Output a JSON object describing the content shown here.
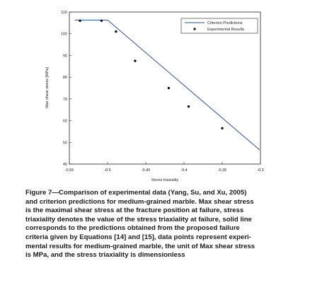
{
  "chart_data": {
    "type": "line",
    "title": "",
    "xlabel": "Stress triaxiality",
    "ylabel": "Max shear stress [MPa]",
    "xlim": [
      -0.55,
      -0.3
    ],
    "ylim": [
      40,
      110
    ],
    "x_ticks": [
      -0.55,
      -0.5,
      -0.45,
      -0.4,
      -0.35,
      -0.3
    ],
    "x_tick_labels": [
      "-0.55",
      "-0.5",
      "-0.45",
      "-0.4",
      "-0.35",
      "-0.3"
    ],
    "y_ticks": [
      40,
      50,
      60,
      70,
      80,
      90,
      100,
      110
    ],
    "y_tick_labels": [
      "40",
      "50",
      "60",
      "70",
      "80",
      "90",
      "100",
      "110"
    ],
    "grid": false,
    "legend_position": "top-right",
    "series": [
      {
        "name": "Criterion Predictions",
        "kind": "line",
        "color": "#2f4f8f",
        "x": [
          -0.543,
          -0.5,
          -0.301
        ],
        "y": [
          106.3,
          106.3,
          46.5
        ]
      },
      {
        "name": "Experimental Results",
        "kind": "scatter",
        "color": "#111111",
        "x": [
          -0.536,
          -0.508,
          -0.489,
          -0.464,
          -0.42,
          -0.394,
          -0.35
        ],
        "y": [
          106.0,
          106.0,
          101.0,
          87.5,
          75.0,
          66.5,
          56.5
        ]
      }
    ]
  },
  "caption": {
    "lines": [
      "Figure 7—Comparison of experimental data (Yang, Su, and Xu, 2005)",
      "and criterion predictions for medium-grained marble. Max shear stress",
      "is the maximal shear stress at the fracture position at failure, stress",
      "triaxiality denotes the value of the stress triaxiality at failure, solid line",
      "corresponds to the predictions obtained from the proposed failure",
      "criteria given by Equations [14] and [15], data points represent experi-",
      "mental results for medium-grained marble, the unit of Max shear stress",
      "is MPa, and the stress triaxiality is dimensionless"
    ]
  }
}
